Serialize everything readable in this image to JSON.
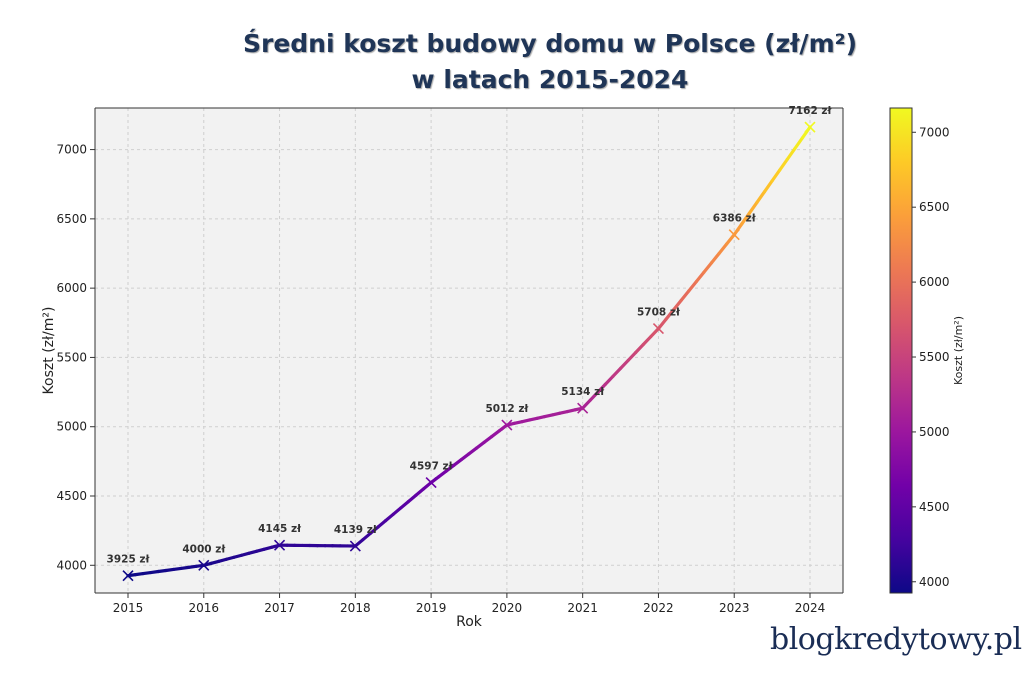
{
  "title_line1": "Średni koszt budowy domu w Polsce (zł/m²)",
  "title_line2": "w latach 2015-2024",
  "brand": "blogkredytowy.pl",
  "chart_data": {
    "type": "line",
    "x": [
      2015,
      2016,
      2017,
      2018,
      2019,
      2020,
      2021,
      2022,
      2023,
      2024
    ],
    "values": [
      3925,
      4000,
      4145,
      4139,
      4597,
      5012,
      5134,
      5708,
      6386,
      7162
    ],
    "labels": [
      "3925 zł",
      "4000 zł",
      "4145 zł",
      "4139 zł",
      "4597 zł",
      "5012 zł",
      "5134 zł",
      "5708 zł",
      "6386 zł",
      "7162 zł"
    ],
    "xlabel": "Rok",
    "ylabel": "Koszt (zł/m²)",
    "ylim": [
      3800,
      7300
    ],
    "yticks": [
      4000,
      4500,
      5000,
      5500,
      6000,
      6500,
      7000
    ],
    "xticks": [
      "2015",
      "2016",
      "2017",
      "2018",
      "2019",
      "2020",
      "2021",
      "2022",
      "2023",
      "2024"
    ],
    "grid": true,
    "colormap": "plasma",
    "colorbar": {
      "label": "Koszt (zł/m²)",
      "range": [
        3925,
        7162
      ],
      "ticks": [
        4000,
        4500,
        5000,
        5500,
        6000,
        6500,
        7000
      ]
    },
    "colors": [
      "#0d0887",
      "#46039f",
      "#7201a8",
      "#9c179e",
      "#bd3786",
      "#d8576b",
      "#ed7953",
      "#fb9f3a",
      "#fdca26",
      "#f0f921"
    ],
    "background": "#f2f2f2"
  }
}
